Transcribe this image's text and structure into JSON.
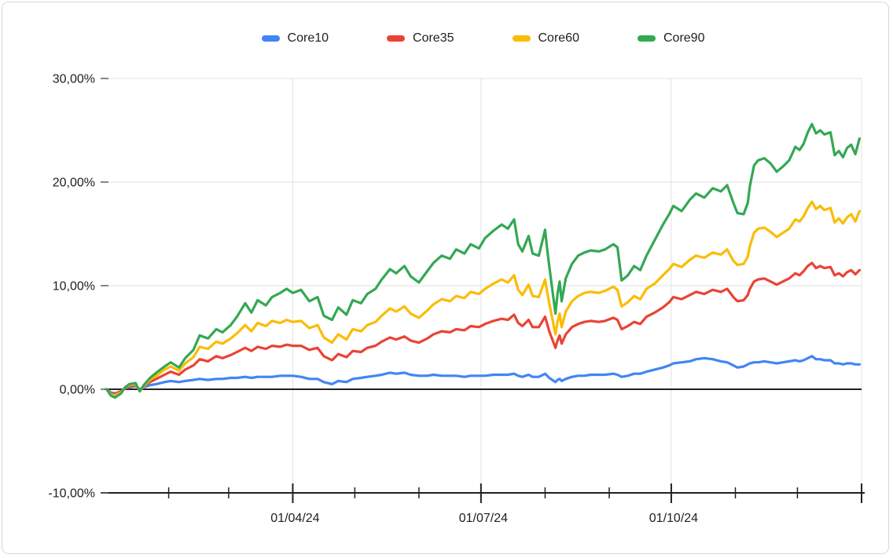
{
  "chart": {
    "legend_items": [
      {
        "label": "Core10",
        "color": "#4285F4"
      },
      {
        "label": "Core35",
        "color": "#EA4335"
      },
      {
        "label": "Core60",
        "color": "#FBBC04"
      },
      {
        "label": "Core90",
        "color": "#34A853"
      }
    ],
    "y_axis_labels": [
      "30,00%",
      "20,00%",
      "10,00%",
      "0,00%",
      "-10,00%"
    ],
    "x_axis_labels": [
      "01/04/24",
      "01/07/24",
      "01/10/24"
    ]
  },
  "colors": {
    "grid": "#e2e2e2",
    "axis": "#212121",
    "tick": "#5f5f5f",
    "text": "#1f1f1f",
    "background": "#ffffff",
    "border": "#d7d7d7"
  },
  "chart_data": {
    "type": "line",
    "title": "",
    "xlabel": "",
    "ylabel": "",
    "x_unit": "day_of_year_2024",
    "xlim": [
      0,
      366
    ],
    "ylim": [
      -10,
      30
    ],
    "grid": true,
    "legend_position": "top",
    "baseline_value": 0,
    "y_ticks": [
      {
        "value": 30,
        "label": "30,00%"
      },
      {
        "value": 20,
        "label": "20,00%"
      },
      {
        "value": 10,
        "label": "10,00%"
      },
      {
        "value": 0,
        "label": "0,00%"
      },
      {
        "value": -10,
        "label": "-10,00%"
      }
    ],
    "x_major_ticks": [
      {
        "day": 91,
        "label": "01/04/24"
      },
      {
        "day": 182,
        "label": "01/07/24"
      },
      {
        "day": 274,
        "label": "01/10/24"
      },
      {
        "day": 366,
        "label": ""
      }
    ],
    "x_minor_tick_days": [
      31,
      60,
      121,
      152,
      213,
      244,
      305,
      335
    ],
    "x": [
      1,
      3,
      5,
      8,
      10,
      12,
      15,
      17,
      19,
      22,
      25,
      29,
      32,
      36,
      39,
      43,
      46,
      50,
      54,
      57,
      61,
      64,
      68,
      71,
      74,
      78,
      81,
      85,
      88,
      91,
      95,
      99,
      103,
      106,
      110,
      113,
      117,
      120,
      124,
      127,
      131,
      134,
      138,
      141,
      145,
      148,
      152,
      156,
      159,
      163,
      167,
      170,
      174,
      177,
      181,
      184,
      188,
      192,
      195,
      198,
      200,
      202,
      205,
      207,
      210,
      213,
      214,
      215,
      218,
      219,
      220,
      221,
      223,
      226,
      229,
      232,
      235,
      239,
      242,
      246,
      248,
      250,
      253,
      256,
      259,
      262,
      266,
      270,
      273,
      275,
      279,
      283,
      286,
      290,
      294,
      298,
      301,
      304,
      306,
      309,
      311,
      312,
      314,
      316,
      319,
      322,
      325,
      328,
      331,
      334,
      336,
      338,
      340,
      342,
      344,
      346,
      348,
      351,
      353,
      355,
      357,
      359,
      361,
      363,
      365
    ],
    "series": [
      {
        "name": "Core10",
        "color": "#4285F4",
        "values": [
          0.0,
          -0.3,
          -0.4,
          -0.2,
          0.1,
          0.2,
          0.3,
          0.0,
          0.2,
          0.4,
          0.5,
          0.7,
          0.8,
          0.7,
          0.8,
          0.9,
          1.0,
          0.9,
          1.0,
          1.0,
          1.1,
          1.1,
          1.2,
          1.1,
          1.2,
          1.2,
          1.2,
          1.3,
          1.3,
          1.3,
          1.2,
          1.0,
          1.0,
          0.7,
          0.5,
          0.8,
          0.7,
          1.0,
          1.1,
          1.2,
          1.3,
          1.4,
          1.6,
          1.5,
          1.6,
          1.4,
          1.3,
          1.3,
          1.4,
          1.3,
          1.3,
          1.3,
          1.2,
          1.3,
          1.3,
          1.3,
          1.4,
          1.4,
          1.4,
          1.5,
          1.3,
          1.2,
          1.4,
          1.2,
          1.2,
          1.5,
          1.3,
          1.1,
          0.7,
          0.9,
          1.0,
          0.8,
          1.0,
          1.2,
          1.3,
          1.3,
          1.4,
          1.4,
          1.4,
          1.5,
          1.4,
          1.2,
          1.3,
          1.5,
          1.5,
          1.7,
          1.9,
          2.1,
          2.3,
          2.5,
          2.6,
          2.7,
          2.9,
          3.0,
          2.9,
          2.7,
          2.6,
          2.3,
          2.1,
          2.2,
          2.4,
          2.5,
          2.6,
          2.6,
          2.7,
          2.6,
          2.5,
          2.6,
          2.7,
          2.8,
          2.7,
          2.8,
          3.0,
          3.2,
          2.9,
          2.9,
          2.8,
          2.8,
          2.5,
          2.5,
          2.4,
          2.5,
          2.5,
          2.4,
          2.4
        ]
      },
      {
        "name": "Core35",
        "color": "#EA4335",
        "values": [
          0.0,
          -0.4,
          -0.5,
          -0.2,
          0.1,
          0.3,
          0.4,
          -0.1,
          0.3,
          0.7,
          1.0,
          1.4,
          1.7,
          1.4,
          1.9,
          2.3,
          2.9,
          2.7,
          3.2,
          3.0,
          3.3,
          3.6,
          4.0,
          3.7,
          4.1,
          3.9,
          4.2,
          4.1,
          4.3,
          4.2,
          4.2,
          3.8,
          4.0,
          3.2,
          2.8,
          3.4,
          3.1,
          3.7,
          3.6,
          4.0,
          4.2,
          4.6,
          5.0,
          4.8,
          5.1,
          4.7,
          4.5,
          4.9,
          5.3,
          5.6,
          5.5,
          5.8,
          5.7,
          6.1,
          6.0,
          6.3,
          6.6,
          6.8,
          6.7,
          7.2,
          6.4,
          6.1,
          6.7,
          6.0,
          6.0,
          7.0,
          6.3,
          5.6,
          4.0,
          4.7,
          5.2,
          4.4,
          5.3,
          6.0,
          6.3,
          6.5,
          6.6,
          6.5,
          6.6,
          6.9,
          6.7,
          5.8,
          6.1,
          6.5,
          6.3,
          7.0,
          7.4,
          7.9,
          8.4,
          8.9,
          8.7,
          9.1,
          9.4,
          9.2,
          9.6,
          9.4,
          9.7,
          8.9,
          8.5,
          8.6,
          9.1,
          9.7,
          10.4,
          10.6,
          10.7,
          10.4,
          10.1,
          10.4,
          10.7,
          11.2,
          11.0,
          11.4,
          11.9,
          12.2,
          11.7,
          11.9,
          11.7,
          11.8,
          11.0,
          11.2,
          10.9,
          11.3,
          11.5,
          11.1,
          11.5
        ]
      },
      {
        "name": "Core60",
        "color": "#FBBC04",
        "values": [
          0.0,
          -0.5,
          -0.6,
          -0.3,
          0.2,
          0.4,
          0.5,
          -0.2,
          0.3,
          0.9,
          1.3,
          1.9,
          2.2,
          1.8,
          2.5,
          3.1,
          4.1,
          3.9,
          4.6,
          4.4,
          4.9,
          5.4,
          6.2,
          5.6,
          6.4,
          6.1,
          6.6,
          6.4,
          6.7,
          6.5,
          6.6,
          5.9,
          6.2,
          5.0,
          4.5,
          5.3,
          4.8,
          5.8,
          5.6,
          6.2,
          6.5,
          7.1,
          7.8,
          7.5,
          8.0,
          7.3,
          6.9,
          7.6,
          8.2,
          8.7,
          8.5,
          9.0,
          8.8,
          9.4,
          9.2,
          9.7,
          10.2,
          10.6,
          10.3,
          11.0,
          9.6,
          9.1,
          10.1,
          9.0,
          8.9,
          10.6,
          9.4,
          8.3,
          5.3,
          6.5,
          7.3,
          6.0,
          7.5,
          8.5,
          9.0,
          9.3,
          9.4,
          9.3,
          9.5,
          9.9,
          9.6,
          8.0,
          8.4,
          9.0,
          8.7,
          9.7,
          10.2,
          11.0,
          11.6,
          12.1,
          11.8,
          12.5,
          12.9,
          12.7,
          13.2,
          13.0,
          13.5,
          12.4,
          12.0,
          12.1,
          12.8,
          13.8,
          15.1,
          15.5,
          15.6,
          15.2,
          14.7,
          15.1,
          15.5,
          16.4,
          16.2,
          16.7,
          17.5,
          18.1,
          17.4,
          17.7,
          17.3,
          17.5,
          16.1,
          16.5,
          16.0,
          16.6,
          16.9,
          16.2,
          17.2
        ]
      },
      {
        "name": "Core90",
        "color": "#34A853",
        "values": [
          0.0,
          -0.6,
          -0.8,
          -0.4,
          0.2,
          0.5,
          0.6,
          -0.2,
          0.4,
          1.1,
          1.6,
          2.2,
          2.6,
          2.1,
          3.0,
          3.8,
          5.2,
          4.9,
          5.8,
          5.5,
          6.2,
          7.0,
          8.3,
          7.4,
          8.6,
          8.1,
          8.9,
          9.3,
          9.7,
          9.3,
          9.6,
          8.5,
          8.9,
          7.1,
          6.7,
          7.9,
          7.2,
          8.6,
          8.3,
          9.2,
          9.7,
          10.6,
          11.6,
          11.2,
          11.9,
          10.9,
          10.3,
          11.4,
          12.2,
          12.9,
          12.6,
          13.5,
          13.1,
          14.0,
          13.6,
          14.6,
          15.3,
          15.9,
          15.5,
          16.4,
          14.0,
          13.3,
          14.8,
          13.1,
          12.9,
          15.4,
          13.5,
          11.9,
          7.3,
          9.2,
          10.4,
          8.5,
          10.7,
          12.1,
          12.9,
          13.2,
          13.4,
          13.3,
          13.5,
          14.0,
          13.7,
          10.5,
          11.0,
          11.9,
          11.5,
          12.9,
          14.4,
          15.9,
          16.9,
          17.7,
          17.2,
          18.3,
          18.9,
          18.5,
          19.4,
          19.1,
          19.7,
          18.0,
          17.0,
          16.9,
          18.0,
          19.6,
          21.6,
          22.1,
          22.3,
          21.8,
          21.0,
          21.5,
          22.1,
          23.4,
          23.1,
          23.7,
          24.8,
          25.6,
          24.7,
          25.0,
          24.6,
          24.8,
          22.6,
          23.0,
          22.4,
          23.3,
          23.6,
          22.7,
          24.2
        ]
      }
    ]
  }
}
